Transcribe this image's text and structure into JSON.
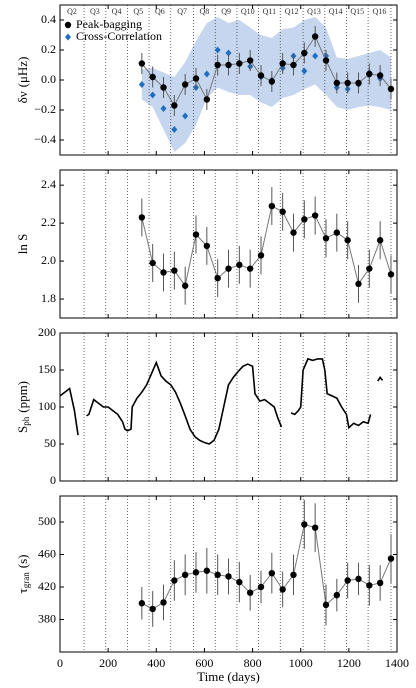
{
  "chart_data": [
    {
      "type": "scatter",
      "ylabel": {
        "main": "δν",
        "unit": "(μHz)"
      },
      "ylim": [
        -0.5,
        0.5
      ],
      "yticks": [
        {
          "value": 0.4,
          "label": "0.4"
        },
        {
          "value": 0.2,
          "label": "0.2"
        },
        {
          "value": 0,
          "label": "0.0"
        },
        {
          "value": -0.2,
          "label": "−0.2"
        },
        {
          "value": -0.4,
          "label": "−0.4"
        }
      ],
      "quarter_boundaries": [
        100,
        190,
        280,
        370,
        460,
        555,
        645,
        735,
        825,
        915,
        1010,
        1100,
        1190,
        1280,
        1375
      ],
      "quarter_labels": [
        "Q2",
        "Q3",
        "Q4",
        "Q5",
        "Q6",
        "Q7",
        "Q8",
        "Q9",
        "Q10",
        "Q11",
        "Q12",
        "Q13",
        "Q14",
        "Q15",
        "Q16"
      ],
      "legend": "upper left",
      "band": {
        "color": "#c6d6ef",
        "x": [
          340,
          385,
          430,
          475,
          520,
          565,
          610,
          655,
          700,
          745,
          790,
          835,
          880,
          925,
          970,
          1015,
          1060,
          1105,
          1150,
          1195,
          1240,
          1285,
          1330,
          1375
        ],
        "upper": [
          0.07,
          0.08,
          0.05,
          0.02,
          0.12,
          0.26,
          0.38,
          0.42,
          0.38,
          0.4,
          0.35,
          0.3,
          0.28,
          0.34,
          0.35,
          0.4,
          0.42,
          0.35,
          0.15,
          0.14,
          0.16,
          0.18,
          0.2,
          0.15
        ],
        "lower": [
          -0.13,
          -0.18,
          -0.33,
          -0.48,
          -0.42,
          -0.3,
          -0.12,
          -0.05,
          -0.08,
          -0.1,
          -0.1,
          -0.15,
          -0.18,
          -0.12,
          -0.1,
          -0.06,
          -0.03,
          -0.1,
          -0.18,
          -0.2,
          -0.18,
          -0.17,
          -0.18,
          -0.2
        ]
      },
      "series": [
        {
          "name": "Cross-Correlation",
          "color": "#1f6fc0",
          "marker": "diamond",
          "x": [
            340,
            385,
            430,
            475,
            520,
            565,
            610,
            655,
            700,
            745,
            790,
            835,
            880,
            925,
            970,
            1015,
            1060,
            1105,
            1150,
            1195,
            1240,
            1285,
            1330,
            1375
          ],
          "values": [
            -0.03,
            -0.1,
            -0.19,
            -0.33,
            -0.24,
            -0.05,
            0.04,
            0.2,
            0.18,
            0.11,
            0.09,
            0.02,
            0.0,
            0.08,
            0.16,
            0.06,
            0.16,
            0.16,
            -0.05,
            -0.06,
            -0.03,
            0.05,
            0.01,
            -0.06
          ]
        },
        {
          "name": "Peak-bagging",
          "color": "#000000",
          "marker": "circle",
          "line_color": "#777777",
          "x": [
            340,
            385,
            430,
            475,
            520,
            565,
            610,
            655,
            700,
            745,
            790,
            835,
            880,
            925,
            970,
            1015,
            1060,
            1105,
            1150,
            1195,
            1240,
            1285,
            1330,
            1375
          ],
          "values": [
            0.11,
            0.02,
            -0.05,
            -0.17,
            -0.03,
            0.01,
            -0.13,
            0.1,
            0.1,
            0.11,
            0.13,
            0.03,
            -0.01,
            0.11,
            0.1,
            0.18,
            0.29,
            0.13,
            -0.02,
            -0.02,
            -0.02,
            0.04,
            0.03,
            -0.06
          ],
          "errors": [
            0.07,
            0.07,
            0.07,
            0.07,
            0.07,
            0.07,
            0.07,
            0.07,
            0.07,
            0.07,
            0.07,
            0.07,
            0.07,
            0.07,
            0.07,
            0.07,
            0.07,
            0.07,
            0.07,
            0.07,
            0.07,
            0.07,
            0.07,
            0.07
          ]
        }
      ]
    },
    {
      "type": "scatter",
      "ylabel": {
        "main": "ln S"
      },
      "ylim": [
        1.7,
        2.48
      ],
      "yticks": [
        2.4,
        2.2,
        {
          "value": 2.0,
          "label": "2.0"
        },
        1.8
      ],
      "series": [
        {
          "name": "Peak-bagging",
          "color": "#000000",
          "marker": "circle",
          "line_color": "#777777",
          "x": [
            340,
            385,
            430,
            475,
            520,
            565,
            610,
            655,
            700,
            745,
            790,
            835,
            880,
            925,
            970,
            1015,
            1060,
            1105,
            1150,
            1195,
            1240,
            1285,
            1330,
            1375
          ],
          "values": [
            2.23,
            1.99,
            1.94,
            1.95,
            1.87,
            2.14,
            2.08,
            1.91,
            1.96,
            1.98,
            1.96,
            2.03,
            2.29,
            2.26,
            2.15,
            2.22,
            2.24,
            2.12,
            2.15,
            2.11,
            1.88,
            1.96,
            2.11,
            1.93
          ],
          "errors": [
            0.1,
            0.1,
            0.1,
            0.1,
            0.1,
            0.1,
            0.1,
            0.1,
            0.1,
            0.1,
            0.1,
            0.1,
            0.1,
            0.1,
            0.1,
            0.1,
            0.1,
            0.1,
            0.1,
            0.1,
            0.1,
            0.1,
            0.1,
            0.1
          ]
        }
      ]
    },
    {
      "type": "line",
      "ylabel": {
        "main": "S",
        "sub": "ph",
        "unit": "(ppm)"
      },
      "ylim": [
        0,
        200
      ],
      "yticks": [
        200,
        150,
        100,
        50,
        0
      ],
      "series": [
        {
          "name": "Sph",
          "color": "#000000",
          "x": [
            0,
            20,
            40,
            60,
            75,
            92,
            110,
            120,
            130,
            140,
            160,
            180,
            200,
            220,
            240,
            260,
            270,
            280,
            295,
            300,
            320,
            340,
            360,
            380,
            400,
            420,
            440,
            460,
            480,
            500,
            520,
            540,
            560,
            580,
            600,
            620,
            640,
            660,
            680,
            700,
            720,
            740,
            760,
            780,
            800,
            810,
            830,
            850,
            870,
            890,
            905,
            920,
            940,
            960,
            975,
            990,
            1000,
            1010,
            1030,
            1050,
            1070,
            1090,
            1100,
            1110,
            1130,
            1150,
            1170,
            1190,
            1200,
            1220,
            1240,
            1260,
            1280,
            1290,
            1305,
            1320,
            1330,
            1340
          ],
          "values": [
            115,
            120,
            125,
            95,
            62,
            null,
            88,
            90,
            100,
            110,
            105,
            100,
            100,
            95,
            90,
            80,
            70,
            68,
            70,
            100,
            112,
            120,
            130,
            145,
            160,
            142,
            135,
            130,
            120,
            105,
            88,
            70,
            60,
            55,
            52,
            50,
            55,
            70,
            100,
            130,
            140,
            148,
            155,
            158,
            155,
            118,
            108,
            110,
            105,
            100,
            85,
            73,
            null,
            92,
            90,
            95,
            100,
            150,
            165,
            163,
            165,
            165,
            150,
            118,
            115,
            112,
            100,
            90,
            72,
            78,
            75,
            80,
            78,
            90,
            null,
            135,
            140,
            136
          ]
        }
      ]
    },
    {
      "type": "scatter",
      "ylabel": {
        "main": "τ",
        "sub": "gran",
        "unit": "(s)"
      },
      "xlabel": "Time (days)",
      "xlim": [
        0,
        1400
      ],
      "xticks": [
        0,
        200,
        400,
        600,
        800,
        1000,
        1200,
        1400
      ],
      "ylim": [
        340,
        532
      ],
      "yticks": [
        500,
        460,
        420,
        380
      ],
      "series": [
        {
          "name": "Peak-bagging",
          "color": "#000000",
          "marker": "circle",
          "line_color": "#777777",
          "x": [
            340,
            385,
            430,
            475,
            520,
            565,
            610,
            655,
            700,
            745,
            790,
            835,
            880,
            925,
            970,
            1015,
            1060,
            1105,
            1150,
            1195,
            1240,
            1285,
            1330,
            1375
          ],
          "values": [
            400,
            393,
            401,
            428,
            435,
            438,
            440,
            435,
            433,
            426,
            413,
            420,
            437,
            417,
            435,
            497,
            493,
            398,
            410,
            428,
            430,
            422,
            425,
            455
          ],
          "errors": [
            20,
            22,
            22,
            25,
            25,
            25,
            28,
            25,
            22,
            25,
            22,
            20,
            25,
            22,
            25,
            30,
            30,
            25,
            20,
            22,
            20,
            25,
            22,
            30
          ]
        }
      ]
    }
  ]
}
